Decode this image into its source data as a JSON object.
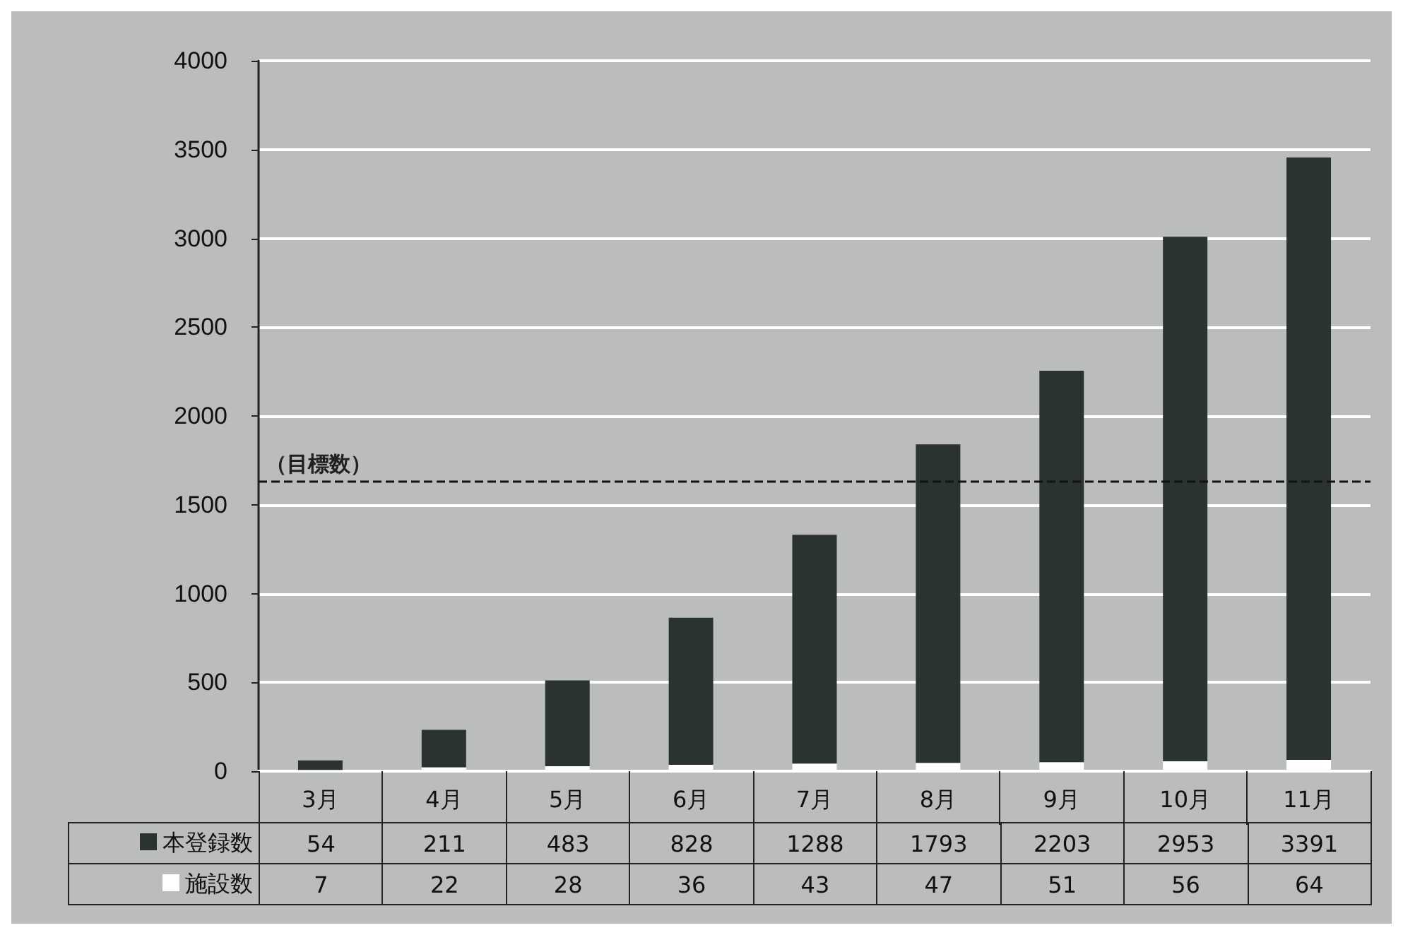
{
  "chart_data": {
    "type": "bar",
    "stacked": true,
    "categories": [
      "3月",
      "4月",
      "5月",
      "6月",
      "7月",
      "8月",
      "9月",
      "10月",
      "11月"
    ],
    "series": [
      {
        "name": "施設数",
        "color": "#ffffff",
        "values": [
          7,
          22,
          28,
          36,
          43,
          47,
          51,
          56,
          64
        ]
      },
      {
        "name": "本登録数",
        "color": "#2b332e",
        "values": [
          54,
          211,
          483,
          828,
          1288,
          1793,
          2203,
          2953,
          3391
        ]
      }
    ],
    "ylim": [
      0,
      4000
    ],
    "yticks": [
      0,
      500,
      1000,
      1500,
      2000,
      2500,
      3000,
      3500,
      4000
    ],
    "grid": "y",
    "legend": "bottom",
    "data_labels": true,
    "ref_lines": [
      {
        "axis": "y",
        "value": 1630,
        "label": "（目標数）",
        "color": "#111111",
        "line_style": "dashed"
      }
    ]
  }
}
